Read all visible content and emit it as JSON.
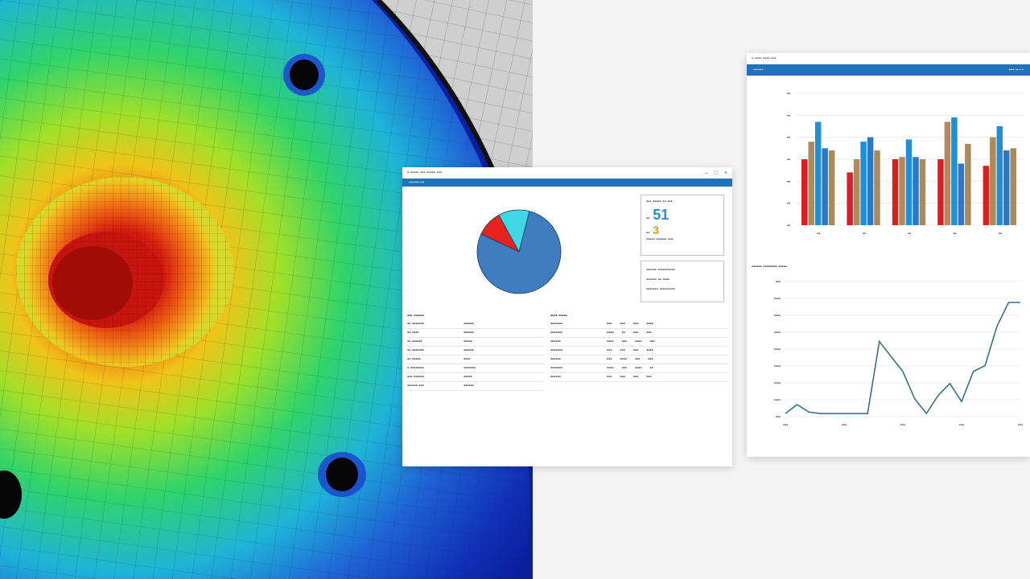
{
  "main_window": {
    "title": "▪ ▪▪▪▪▪ ▪▪▪ ▪▪▪▪▪ ▪▪▪",
    "toolbar_text": "▪▪▪▪▪▪▪ ▪▪▪",
    "controls": [
      "–",
      "□",
      "×"
    ],
    "summary_card": {
      "header": "▪▪▪ ▪▪▪▪▪ ▪▪ ▪▪▪",
      "value_1_label": "▪▪",
      "value_1": "51",
      "value_2_label": "▪▪",
      "value_2": "3",
      "footer": "▪▪▪▪▪ ▪▪▪▪▪▪ ▪▪▪"
    },
    "info_card": {
      "line_1": "▪▪▪▪▪▪ ▪▪▪▪▪▪▪▪▪▪",
      "line_2": "▪▪▪▪▪▪ ▪▪ ▪▪▪▪",
      "line_3": "▪▪▪▪▪▪▪ ▪▪▪▪▪▪▪▪▪"
    },
    "left_table": {
      "header": "▪▪▪ ▪▪▪▪▪▪",
      "rows": [
        [
          "▪▪ ▪▪▪▪▪▪▪",
          "▪▪▪▪▪▪"
        ],
        [
          "▪▪ ▪▪▪▪",
          "▪▪▪▪▪▪"
        ],
        [
          "▪▪ ▪▪▪▪▪▪",
          "▪▪▪▪▪"
        ],
        [
          "▪▪ ▪▪▪▪▪▪▪",
          "▪▪▪▪▪▪"
        ],
        [
          "▪▪ ▪▪▪▪▪",
          "▪▪▪▪"
        ],
        [
          "▪ ▪▪▪▪▪▪▪▪",
          "▪▪▪▪▪▪▪"
        ],
        [
          "▪▪▪ ▪▪▪▪▪▪",
          "▪▪▪▪▪"
        ],
        [
          "▪▪▪▪▪▪ ▪▪▪",
          "▪▪▪▪▪▪"
        ]
      ]
    },
    "right_table": {
      "header": "▪▪▪▪ ▪▪▪▪▪",
      "rows": [
        [
          "▪▪▪▪▪▪▪",
          "▪▪▪",
          "▪▪▪",
          "▪▪▪",
          "▪▪▪▪"
        ],
        [
          "▪▪▪▪▪▪▪",
          "▪▪▪▪",
          "▪▪",
          "▪▪▪",
          "▪▪▪"
        ],
        [
          "▪▪▪▪▪▪",
          "▪▪▪▪",
          "▪▪▪",
          "▪▪▪▪",
          "▪▪▪"
        ],
        [
          "▪▪▪▪▪▪▪",
          "▪▪▪",
          "▪▪▪",
          "▪▪▪",
          "▪▪▪▪"
        ],
        [
          "▪▪▪▪▪▪",
          "▪▪▪",
          "▪▪▪▪",
          "▪▪▪",
          "▪▪▪"
        ],
        [
          "▪▪▪▪▪▪▪",
          "▪▪▪▪",
          "▪▪▪",
          "▪▪▪▪",
          "▪▪"
        ],
        [
          "▪▪▪▪▪▪",
          "▪▪▪",
          "▪▪▪",
          "▪▪▪",
          "▪▪▪"
        ]
      ]
    }
  },
  "right_window": {
    "title": "▪ ▪▪▪▪ ▪▪▪▪ ▪▪▪",
    "toolbar_text": "▪▪▪▪▪▪▪",
    "toolbar_right": "▪▪▪▪ ▪▪ ▪ ▪",
    "line_chart_title": "▪▪▪▪▪▪ ▪▪▪▪▪▪▪▪ ▪▪▪▪▪"
  },
  "chart_data": [
    {
      "type": "pie",
      "values": [
        78,
        10,
        12
      ],
      "colors": [
        "#3f7cc0",
        "#e8231e",
        "#3fd7e6"
      ]
    },
    {
      "type": "bar",
      "categories": [
        "▪▪",
        "▪▪",
        "▪▪",
        "▪▪",
        "▪▪"
      ],
      "ylim": [
        0,
        120
      ],
      "yticks": [
        "▪▪",
        "▪▪",
        "▪▪",
        "▪▪",
        "▪▪",
        "▪▪",
        "▪▪"
      ],
      "series": [
        {
          "color": "#d92020",
          "values": [
            60,
            48,
            60,
            60,
            54
          ]
        },
        {
          "color": "#b08a58",
          "values": [
            76,
            60,
            62,
            94,
            80
          ]
        },
        {
          "color": "#1f8fd8",
          "values": [
            94,
            76,
            78,
            98,
            90
          ]
        },
        {
          "color": "#2b78c8",
          "values": [
            70,
            80,
            62,
            56,
            68
          ]
        },
        {
          "color": "#a88a5c",
          "values": [
            68,
            68,
            60,
            74,
            70
          ]
        }
      ]
    },
    {
      "type": "line",
      "x": [
        0,
        1,
        2,
        3,
        4,
        5,
        6,
        7,
        8,
        9,
        10,
        11,
        12,
        13,
        14,
        15,
        16,
        17,
        18,
        19,
        20
      ],
      "values": [
        2,
        8,
        3,
        2,
        2,
        2,
        2,
        2,
        50,
        40,
        30,
        12,
        2,
        14,
        22,
        10,
        30,
        34,
        60,
        76,
        76
      ],
      "ylim": [
        0,
        90
      ],
      "yticks": [
        "▪▪▪",
        "▪▪▪▪",
        "▪▪▪▪",
        "▪▪▪▪",
        "▪▪▪▪",
        "▪▪▪▪",
        "▪▪▪▪",
        "▪▪▪▪",
        "▪▪▪"
      ],
      "xticks": [
        "▪▪▪",
        "▪▪▪",
        "▪▪▪",
        "▪▪▪",
        "▪▪▪"
      ],
      "color": "#3a6f8a"
    }
  ]
}
